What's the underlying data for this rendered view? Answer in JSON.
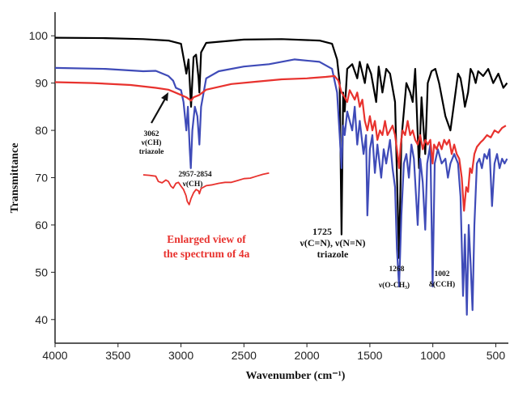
{
  "chart_data": {
    "type": "line",
    "xlabel": "Wavenumber (cm⁻¹)",
    "ylabel": "Transmittance",
    "xlim": [
      4000,
      400
    ],
    "ylim": [
      35,
      105
    ],
    "x_ticks": [
      "4000",
      "3500",
      "3000",
      "2500",
      "2000",
      "1500",
      "1000",
      "500"
    ],
    "y_ticks": [
      "40",
      "50",
      "60",
      "70",
      "80",
      "90",
      "100"
    ],
    "grid": false,
    "series": [
      {
        "color": "#000000",
        "points": [
          [
            4000,
            99.6
          ],
          [
            3600,
            99.5
          ],
          [
            3300,
            99.3
          ],
          [
            3100,
            99.0
          ],
          [
            3000,
            98.3
          ],
          [
            2970,
            94.0
          ],
          [
            2957,
            92.0
          ],
          [
            2940,
            95.0
          ],
          [
            2920,
            85.0
          ],
          [
            2900,
            95.5
          ],
          [
            2880,
            96.0
          ],
          [
            2860,
            91.0
          ],
          [
            2854,
            88.0
          ],
          [
            2840,
            96.5
          ],
          [
            2800,
            98.5
          ],
          [
            2500,
            99.2
          ],
          [
            2200,
            99.3
          ],
          [
            1900,
            99.0
          ],
          [
            1800,
            98.3
          ],
          [
            1760,
            95.0
          ],
          [
            1740,
            90.0
          ],
          [
            1725,
            58.0
          ],
          [
            1712,
            88.0
          ],
          [
            1700,
            84.0
          ],
          [
            1680,
            93.0
          ],
          [
            1640,
            94.0
          ],
          [
            1600,
            91.0
          ],
          [
            1580,
            94.5
          ],
          [
            1540,
            90.0
          ],
          [
            1520,
            94.0
          ],
          [
            1490,
            92.0
          ],
          [
            1450,
            86.0
          ],
          [
            1430,
            93.5
          ],
          [
            1400,
            88.0
          ],
          [
            1370,
            93.0
          ],
          [
            1340,
            92.0
          ],
          [
            1300,
            86.0
          ],
          [
            1268,
            53.0
          ],
          [
            1250,
            78.0
          ],
          [
            1210,
            90.0
          ],
          [
            1180,
            88.0
          ],
          [
            1160,
            86.0
          ],
          [
            1140,
            93.0
          ],
          [
            1110,
            72.0
          ],
          [
            1090,
            87.0
          ],
          [
            1060,
            75.0
          ],
          [
            1040,
            90.0
          ],
          [
            1010,
            92.5
          ],
          [
            980,
            93.0
          ],
          [
            950,
            90.0
          ],
          [
            900,
            83.0
          ],
          [
            860,
            80.0
          ],
          [
            820,
            88.0
          ],
          [
            800,
            92.0
          ],
          [
            780,
            91.0
          ],
          [
            760,
            88.0
          ],
          [
            745,
            85.0
          ],
          [
            720,
            88.0
          ],
          [
            700,
            93.0
          ],
          [
            680,
            92.0
          ],
          [
            660,
            90.0
          ],
          [
            640,
            92.5
          ],
          [
            600,
            91.5
          ],
          [
            560,
            93.0
          ],
          [
            520,
            90.0
          ],
          [
            480,
            92.0
          ],
          [
            440,
            89.0
          ],
          [
            410,
            90.0
          ]
        ]
      },
      {
        "color": "#3f4bb8",
        "points": [
          [
            4000,
            93.2
          ],
          [
            3600,
            93.0
          ],
          [
            3300,
            92.5
          ],
          [
            3200,
            92.6
          ],
          [
            3100,
            91.5
          ],
          [
            3062,
            90.5
          ],
          [
            3040,
            89.0
          ],
          [
            3000,
            88.5
          ],
          [
            2980,
            86.0
          ],
          [
            2957,
            80.0
          ],
          [
            2945,
            85.0
          ],
          [
            2930,
            76.0
          ],
          [
            2922,
            72.0
          ],
          [
            2910,
            80.0
          ],
          [
            2890,
            85.0
          ],
          [
            2870,
            83.0
          ],
          [
            2854,
            77.0
          ],
          [
            2840,
            85.0
          ],
          [
            2800,
            91.0
          ],
          [
            2700,
            92.5
          ],
          [
            2500,
            93.5
          ],
          [
            2300,
            94.0
          ],
          [
            2100,
            95.0
          ],
          [
            1900,
            94.5
          ],
          [
            1800,
            93.0
          ],
          [
            1760,
            88.0
          ],
          [
            1740,
            79.0
          ],
          [
            1725,
            72.0
          ],
          [
            1712,
            81.0
          ],
          [
            1700,
            79.0
          ],
          [
            1680,
            84.0
          ],
          [
            1640,
            80.0
          ],
          [
            1620,
            85.0
          ],
          [
            1600,
            77.0
          ],
          [
            1580,
            82.0
          ],
          [
            1550,
            75.0
          ],
          [
            1530,
            79.0
          ],
          [
            1520,
            62.0
          ],
          [
            1500,
            76.0
          ],
          [
            1480,
            79.0
          ],
          [
            1460,
            71.0
          ],
          [
            1440,
            77.0
          ],
          [
            1410,
            70.0
          ],
          [
            1390,
            76.0
          ],
          [
            1370,
            73.0
          ],
          [
            1340,
            78.0
          ],
          [
            1320,
            72.0
          ],
          [
            1300,
            68.0
          ],
          [
            1285,
            55.0
          ],
          [
            1268,
            47.0
          ],
          [
            1250,
            62.0
          ],
          [
            1230,
            73.0
          ],
          [
            1210,
            75.0
          ],
          [
            1190,
            70.0
          ],
          [
            1170,
            77.0
          ],
          [
            1150,
            74.0
          ],
          [
            1120,
            60.0
          ],
          [
            1100,
            74.0
          ],
          [
            1080,
            69.0
          ],
          [
            1060,
            59.0
          ],
          [
            1045,
            73.0
          ],
          [
            1020,
            77.0
          ],
          [
            1002,
            47.0
          ],
          [
            985,
            73.0
          ],
          [
            960,
            76.0
          ],
          [
            930,
            73.0
          ],
          [
            900,
            74.0
          ],
          [
            880,
            70.0
          ],
          [
            860,
            73.0
          ],
          [
            830,
            75.0
          ],
          [
            800,
            73.0
          ],
          [
            780,
            66.0
          ],
          [
            760,
            45.0
          ],
          [
            745,
            58.0
          ],
          [
            730,
            41.0
          ],
          [
            715,
            60.0
          ],
          [
            700,
            52.0
          ],
          [
            685,
            42.0
          ],
          [
            670,
            60.0
          ],
          [
            650,
            73.0
          ],
          [
            630,
            74.0
          ],
          [
            610,
            72.0
          ],
          [
            590,
            75.0
          ],
          [
            570,
            74.0
          ],
          [
            550,
            76.0
          ],
          [
            530,
            64.0
          ],
          [
            510,
            73.0
          ],
          [
            490,
            75.0
          ],
          [
            470,
            72.0
          ],
          [
            450,
            74.0
          ],
          [
            430,
            73.0
          ],
          [
            410,
            74.0
          ]
        ]
      },
      {
        "color": "#e8322e",
        "points": [
          [
            4000,
            90.2
          ],
          [
            3700,
            90.0
          ],
          [
            3400,
            89.6
          ],
          [
            3200,
            89.0
          ],
          [
            3100,
            88.6
          ],
          [
            3062,
            88.2
          ],
          [
            3000,
            87.5
          ],
          [
            2957,
            87.0
          ],
          [
            2920,
            86.3
          ],
          [
            2900,
            87.0
          ],
          [
            2854,
            87.5
          ],
          [
            2800,
            88.6
          ],
          [
            2600,
            89.8
          ],
          [
            2400,
            90.3
          ],
          [
            2200,
            90.8
          ],
          [
            2000,
            91.0
          ],
          [
            1850,
            91.3
          ],
          [
            1780,
            91.5
          ],
          [
            1750,
            90.5
          ],
          [
            1725,
            88.0
          ],
          [
            1700,
            87.0
          ],
          [
            1680,
            86.0
          ],
          [
            1660,
            88.5
          ],
          [
            1640,
            87.5
          ],
          [
            1620,
            86.5
          ],
          [
            1600,
            88.0
          ],
          [
            1580,
            85.0
          ],
          [
            1560,
            86.5
          ],
          [
            1540,
            82.0
          ],
          [
            1520,
            80.0
          ],
          [
            1500,
            83.0
          ],
          [
            1480,
            80.0
          ],
          [
            1460,
            82.0
          ],
          [
            1440,
            78.0
          ],
          [
            1420,
            80.0
          ],
          [
            1400,
            79.0
          ],
          [
            1380,
            82.0
          ],
          [
            1360,
            79.0
          ],
          [
            1340,
            80.0
          ],
          [
            1320,
            81.0
          ],
          [
            1300,
            79.0
          ],
          [
            1280,
            75.0
          ],
          [
            1268,
            72.0
          ],
          [
            1255,
            77.0
          ],
          [
            1240,
            80.0
          ],
          [
            1220,
            79.0
          ],
          [
            1200,
            82.0
          ],
          [
            1180,
            79.0
          ],
          [
            1160,
            80.0
          ],
          [
            1140,
            78.0
          ],
          [
            1120,
            77.0
          ],
          [
            1100,
            79.0
          ],
          [
            1080,
            76.0
          ],
          [
            1060,
            78.0
          ],
          [
            1040,
            77.0
          ],
          [
            1020,
            78.0
          ],
          [
            1002,
            73.0
          ],
          [
            990,
            77.0
          ],
          [
            970,
            76.0
          ],
          [
            950,
            77.5
          ],
          [
            930,
            76.0
          ],
          [
            910,
            78.0
          ],
          [
            890,
            77.0
          ],
          [
            870,
            78.0
          ],
          [
            850,
            75.0
          ],
          [
            830,
            77.0
          ],
          [
            810,
            75.0
          ],
          [
            790,
            74.0
          ],
          [
            770,
            70.0
          ],
          [
            752,
            63.0
          ],
          [
            735,
            68.0
          ],
          [
            720,
            67.0
          ],
          [
            705,
            72.0
          ],
          [
            690,
            71.0
          ],
          [
            670,
            75.0
          ],
          [
            650,
            76.5
          ],
          [
            620,
            77.5
          ],
          [
            600,
            78.0
          ],
          [
            570,
            79.0
          ],
          [
            540,
            78.5
          ],
          [
            510,
            80.0
          ],
          [
            480,
            79.5
          ],
          [
            450,
            80.5
          ],
          [
            420,
            81.0
          ]
        ]
      }
    ],
    "inset": {
      "color": "#e8322e",
      "points": [
        [
          3300,
          70.6
        ],
        [
          3250,
          70.5
        ],
        [
          3200,
          70.3
        ],
        [
          3180,
          69.2
        ],
        [
          3150,
          68.9
        ],
        [
          3120,
          69.5
        ],
        [
          3100,
          69.2
        ],
        [
          3080,
          68.2
        ],
        [
          3062,
          67.8
        ],
        [
          3040,
          68.8
        ],
        [
          3020,
          69.0
        ],
        [
          3000,
          68.2
        ],
        [
          2980,
          67.5
        ],
        [
          2960,
          66.2
        ],
        [
          2950,
          65.0
        ],
        [
          2935,
          64.3
        ],
        [
          2920,
          65.6
        ],
        [
          2900,
          66.8
        ],
        [
          2880,
          67.5
        ],
        [
          2860,
          67.2
        ],
        [
          2854,
          66.6
        ],
        [
          2840,
          67.7
        ],
        [
          2800,
          68.3
        ],
        [
          2750,
          68.5
        ],
        [
          2700,
          68.8
        ],
        [
          2650,
          69.0
        ],
        [
          2600,
          69.0
        ],
        [
          2550,
          69.4
        ],
        [
          2500,
          69.8
        ],
        [
          2450,
          69.9
        ],
        [
          2400,
          70.3
        ],
        [
          2350,
          70.7
        ],
        [
          2300,
          71.0
        ]
      ]
    },
    "annotations": {
      "a3062": [
        "3062",
        "ν(CH)",
        "triazole"
      ],
      "a2957": [
        "2957-2854",
        "ν(CH)"
      ],
      "a1725": [
        "1725",
        "ν(C=N), ν(N=N)",
        "triazole"
      ],
      "a1268": [
        "1268",
        "ν(O-CH₃)"
      ],
      "a1002": [
        "1002",
        "δ(CCH)"
      ],
      "inset_label": [
        "Enlarged view of",
        "the spectrum of 4a"
      ]
    }
  }
}
